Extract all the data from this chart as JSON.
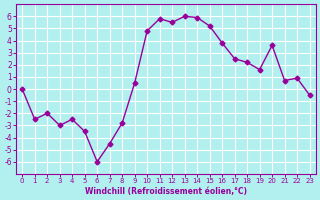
{
  "x": [
    0,
    1,
    2,
    3,
    4,
    5,
    6,
    7,
    8,
    9,
    10,
    11,
    12,
    13,
    14,
    15,
    16,
    17,
    18,
    19,
    20,
    21,
    22,
    23
  ],
  "y": [
    0,
    -2.5,
    -2,
    -3,
    -2.5,
    -3.5,
    -6,
    -4.5,
    -2.8,
    0.5,
    4.8,
    5.8,
    5.5,
    6.0,
    5.9,
    5.2,
    3.8,
    2.5,
    2.2,
    1.6,
    3.6,
    0.7,
    0.9,
    -0.5
  ],
  "line_color": "#990099",
  "marker_color": "#990099",
  "bg_color": "#b2f0f0",
  "grid_color": "#ffffff",
  "xlabel": "Windchill (Refroidissement éolien,°C)",
  "ylim": [
    -7,
    7
  ],
  "xlim": [
    -0.5,
    23.5
  ],
  "yticks": [
    -6,
    -5,
    -4,
    -3,
    -2,
    -1,
    0,
    1,
    2,
    3,
    4,
    5,
    6
  ],
  "xticks": [
    0,
    1,
    2,
    3,
    4,
    5,
    6,
    7,
    8,
    9,
    10,
    11,
    12,
    13,
    14,
    15,
    16,
    17,
    18,
    19,
    20,
    21,
    22,
    23
  ],
  "tick_color": "#990099",
  "label_color": "#990099",
  "axis_color": "#990099"
}
